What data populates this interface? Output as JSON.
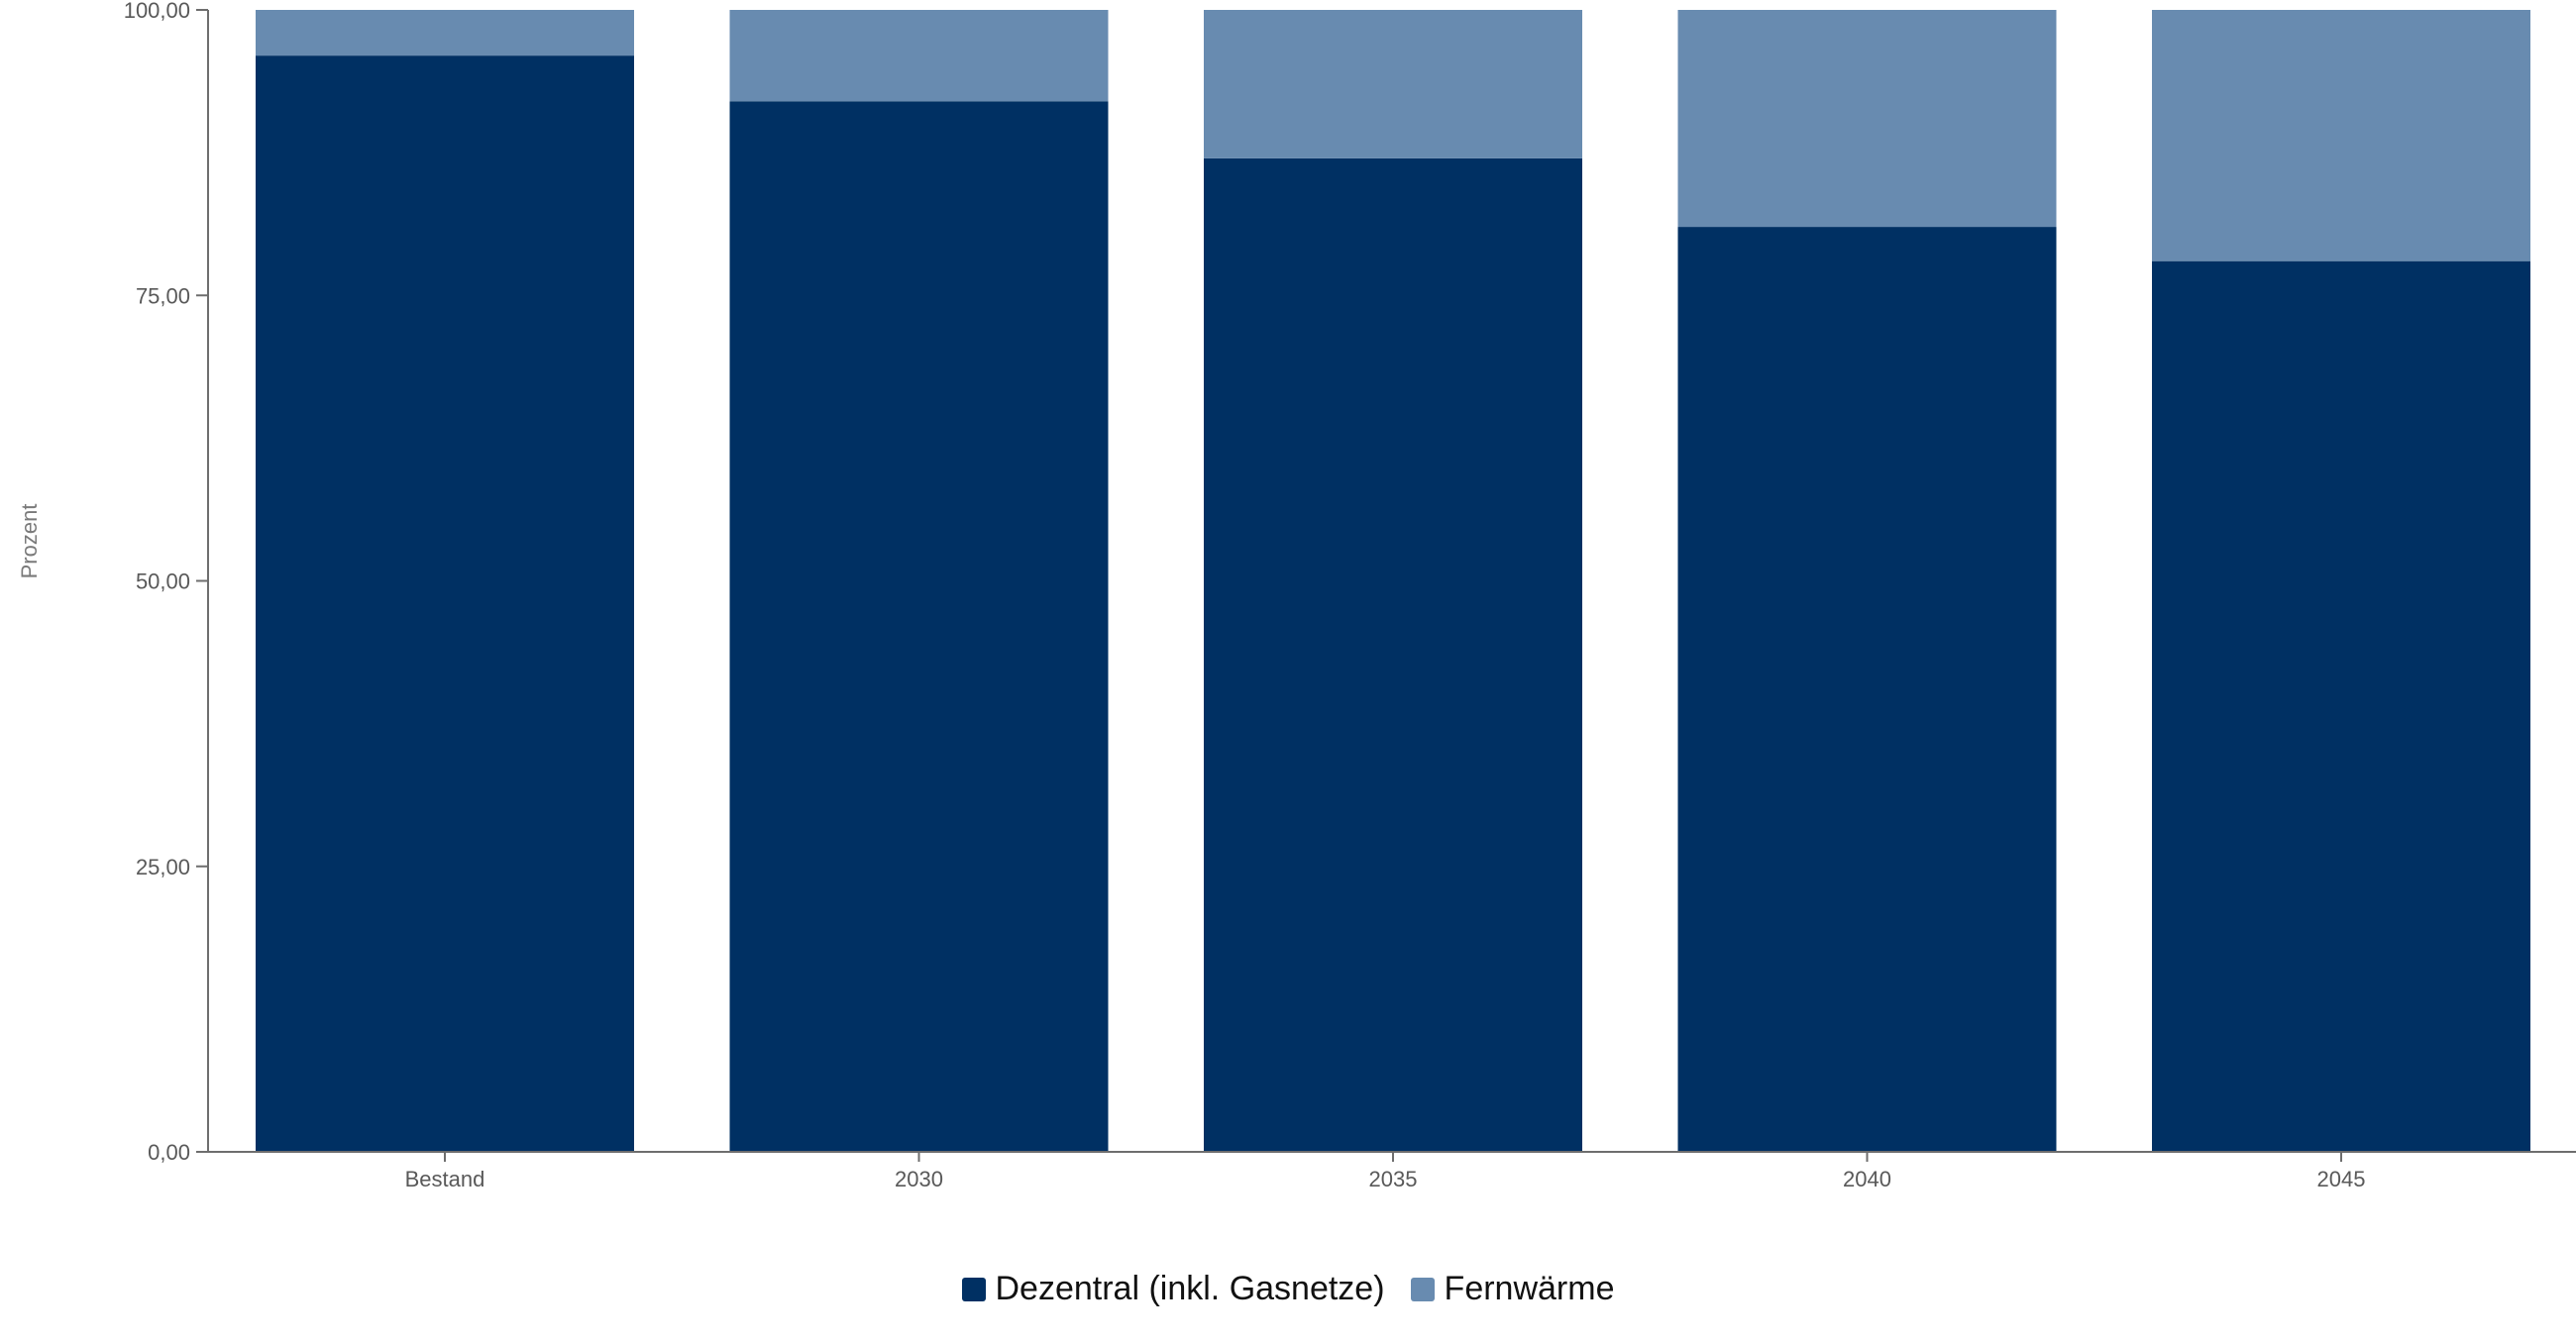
{
  "chart_data": {
    "type": "bar",
    "stacked": true,
    "categories": [
      "Bestand",
      "2030",
      "2035",
      "2040",
      "2045"
    ],
    "series": [
      {
        "name": "Dezentral (inkl. Gasnetze)",
        "color": "#003063",
        "values": [
          96,
          92,
          87,
          81,
          78
        ]
      },
      {
        "name": "Fernwärme",
        "color": "#688bb0",
        "values": [
          4,
          8,
          13,
          19,
          22
        ]
      }
    ],
    "title": "",
    "xlabel": "",
    "ylabel": "Prozent",
    "ylim": [
      0,
      100
    ],
    "yticks": [
      0,
      25,
      50,
      75,
      100
    ],
    "ytick_labels": [
      "0,00",
      "25,00",
      "50,00",
      "75,00",
      "100,00"
    ],
    "grid": false,
    "legend_position": "bottom-center"
  }
}
